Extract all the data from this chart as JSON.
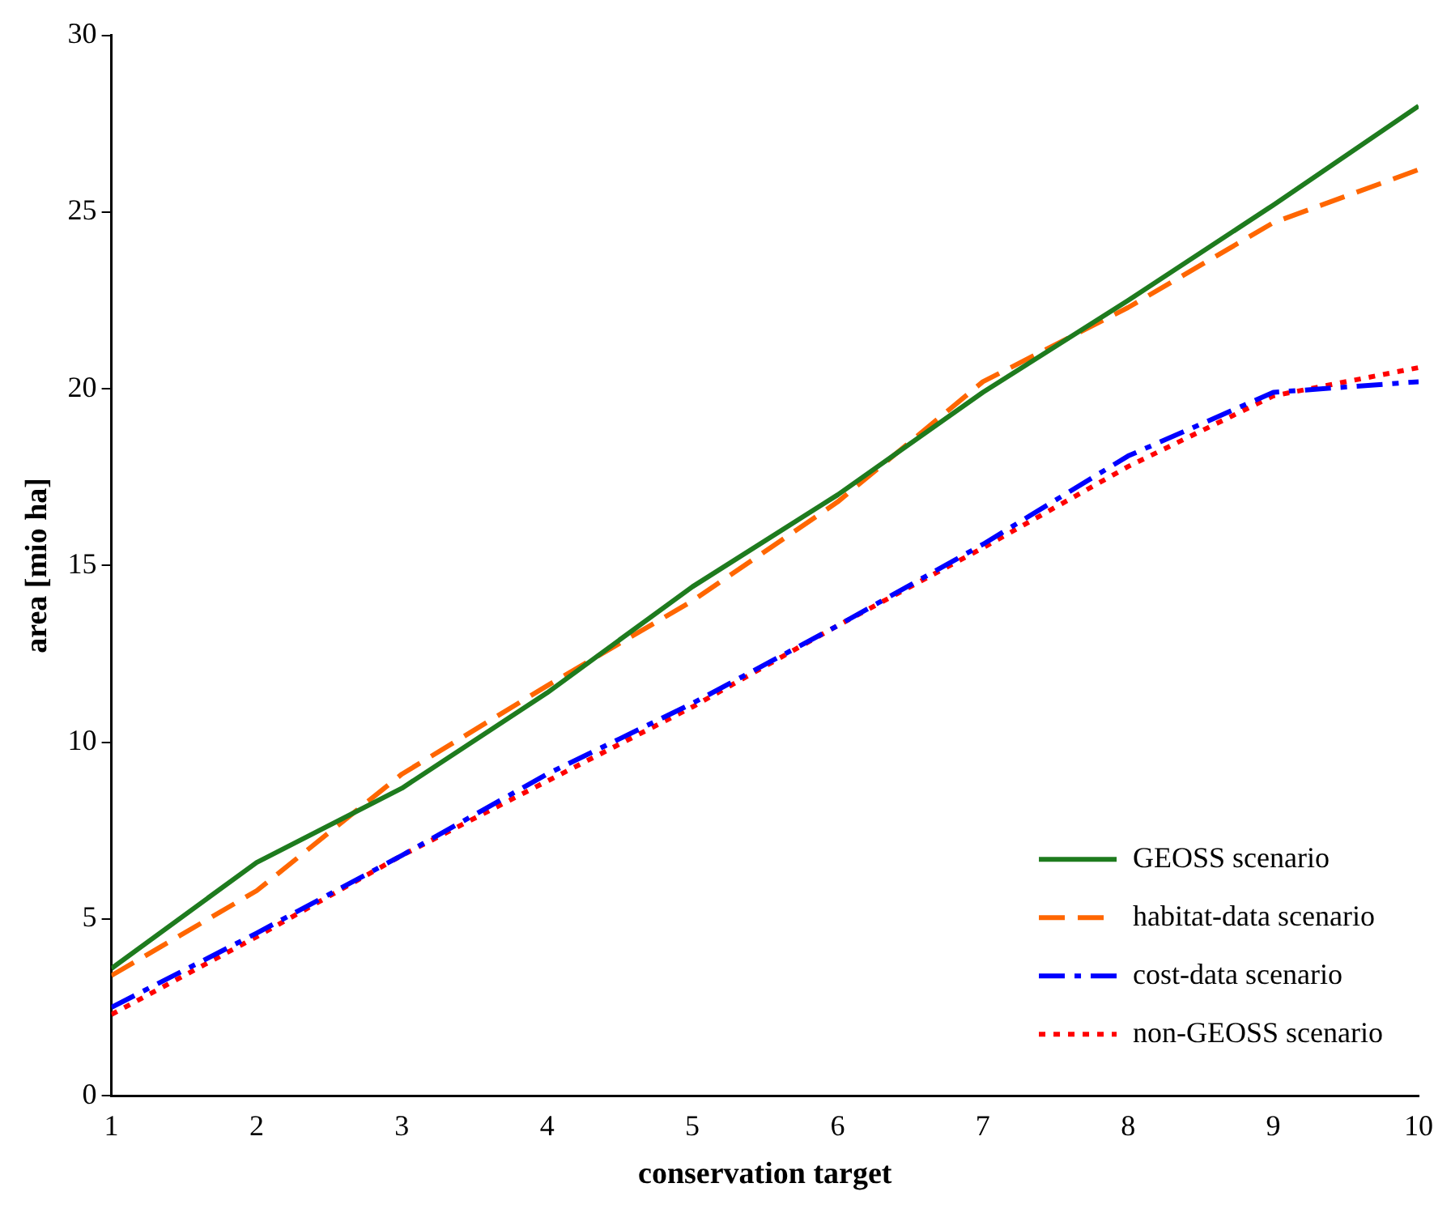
{
  "chart_data": {
    "type": "line",
    "xlabel": "conservation target",
    "ylabel": "area [mio ha]",
    "x": [
      1,
      2,
      3,
      4,
      5,
      6,
      7,
      8,
      9,
      10
    ],
    "xlim": [
      1,
      10
    ],
    "xticks": [
      1,
      2,
      3,
      4,
      5,
      6,
      7,
      8,
      9,
      10
    ],
    "ylim": [
      0,
      30
    ],
    "yticks": [
      0,
      5,
      10,
      15,
      20,
      25,
      30
    ],
    "legend": "bottom right",
    "grid": false,
    "marker": "none",
    "series": [
      {
        "name": "GEOSS scenario",
        "color": "#1e7b1e",
        "line_style": "solid",
        "values": [
          3.6,
          6.6,
          8.7,
          11.4,
          14.4,
          17.0,
          19.9,
          22.5,
          25.2,
          28.0
        ]
      },
      {
        "name": "habitat-data scenario",
        "color": "#ff6600",
        "line_style": "dashed",
        "values": [
          3.4,
          5.8,
          9.1,
          11.6,
          14.0,
          16.8,
          20.2,
          22.3,
          24.7,
          26.2
        ]
      },
      {
        "name": "cost-data scenario",
        "color": "#0000ff",
        "line_style": "dashdot",
        "values": [
          2.5,
          4.6,
          6.8,
          9.1,
          11.1,
          13.3,
          15.6,
          18.1,
          19.9,
          20.2
        ]
      },
      {
        "name": "non-GEOSS scenario",
        "color": "#ff0000",
        "line_style": "dotted",
        "values": [
          2.3,
          4.5,
          6.8,
          8.9,
          11.0,
          13.3,
          15.5,
          17.8,
          19.8,
          20.6
        ]
      }
    ]
  }
}
